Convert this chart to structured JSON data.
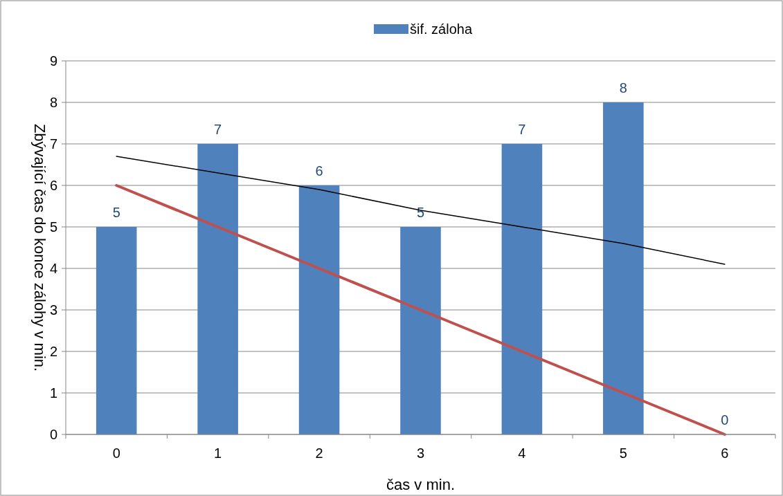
{
  "chart_data": {
    "type": "bar",
    "xlabel": "čas v min.",
    "ylabel": "Zbývající čas do konce zálohy v min.",
    "categories": [
      "0",
      "1",
      "2",
      "3",
      "4",
      "5",
      "6"
    ],
    "series": [
      {
        "name": "šif. záloha",
        "color": "#4f81bd",
        "values": [
          5,
          7,
          6,
          5,
          7,
          8,
          0
        ],
        "value_labels": [
          "5",
          "7",
          "6",
          "5",
          "7",
          "8",
          "0"
        ]
      },
      {
        "type": "line",
        "color": "#c0504d",
        "values": [
          6,
          5,
          4,
          3,
          2,
          1,
          0
        ]
      },
      {
        "type": "line",
        "color": "#000000",
        "values": [
          6.7,
          6.3,
          5.9,
          5.4,
          5.0,
          4.6,
          4.1
        ]
      }
    ],
    "ylim": [
      0,
      9
    ],
    "yticks": [
      0,
      1,
      2,
      3,
      4,
      5,
      6,
      7,
      8,
      9
    ],
    "grid": "y",
    "legend": "top"
  }
}
